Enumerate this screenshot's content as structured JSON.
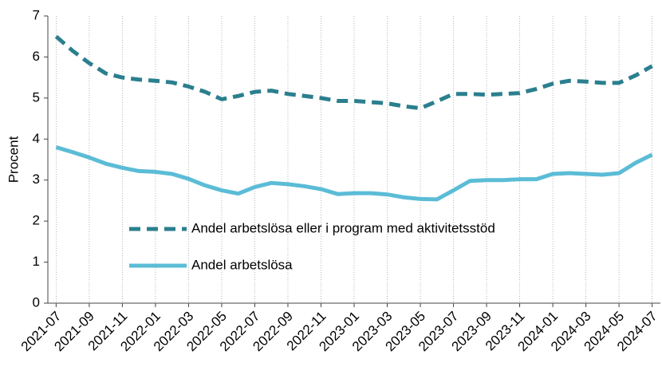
{
  "chart_data": {
    "type": "line",
    "y_label": "Procent",
    "categories": [
      "2021-07",
      null,
      "2021-09",
      null,
      "2021-11",
      null,
      "2022-01",
      null,
      "2022-03",
      null,
      "2022-05",
      null,
      "2022-07",
      null,
      "2022-09",
      null,
      "2022-11",
      null,
      "2023-01",
      null,
      "2023-03",
      null,
      "2023-05",
      null,
      "2023-07",
      null,
      "2023-09",
      null,
      "2023-11",
      null,
      "2024-01",
      null,
      "2024-03",
      null,
      "2024-05",
      null,
      "2024-07"
    ],
    "series": [
      {
        "name": "Andel arbetslösa eller i program med aktivitetsstöd",
        "color": "#2b7f8e",
        "dashed": true,
        "values": [
          6.5,
          6.15,
          5.85,
          5.6,
          5.5,
          5.45,
          5.42,
          5.38,
          5.28,
          5.15,
          4.97,
          5.05,
          5.15,
          5.18,
          5.1,
          5.05,
          5.0,
          4.93,
          4.93,
          4.9,
          4.87,
          4.8,
          4.75,
          4.92,
          5.1,
          5.1,
          5.08,
          5.1,
          5.12,
          5.22,
          5.35,
          5.42,
          5.4,
          5.37,
          5.37,
          5.55,
          5.78
        ]
      },
      {
        "name": "Andel arbetslösa",
        "color": "#5bbcd6",
        "dashed": false,
        "values": [
          3.8,
          3.68,
          3.55,
          3.4,
          3.3,
          3.22,
          3.2,
          3.15,
          3.03,
          2.87,
          2.75,
          2.67,
          2.83,
          2.93,
          2.9,
          2.85,
          2.78,
          2.66,
          2.68,
          2.68,
          2.65,
          2.58,
          2.54,
          2.53,
          2.75,
          2.98,
          3.0,
          3.0,
          3.02,
          3.02,
          3.15,
          3.17,
          3.15,
          3.13,
          3.17,
          3.42,
          3.62
        ]
      }
    ],
    "ylim": [
      0,
      7
    ],
    "yticks": [
      0,
      1,
      2,
      3,
      4,
      5,
      6,
      7
    ],
    "grid": true
  }
}
